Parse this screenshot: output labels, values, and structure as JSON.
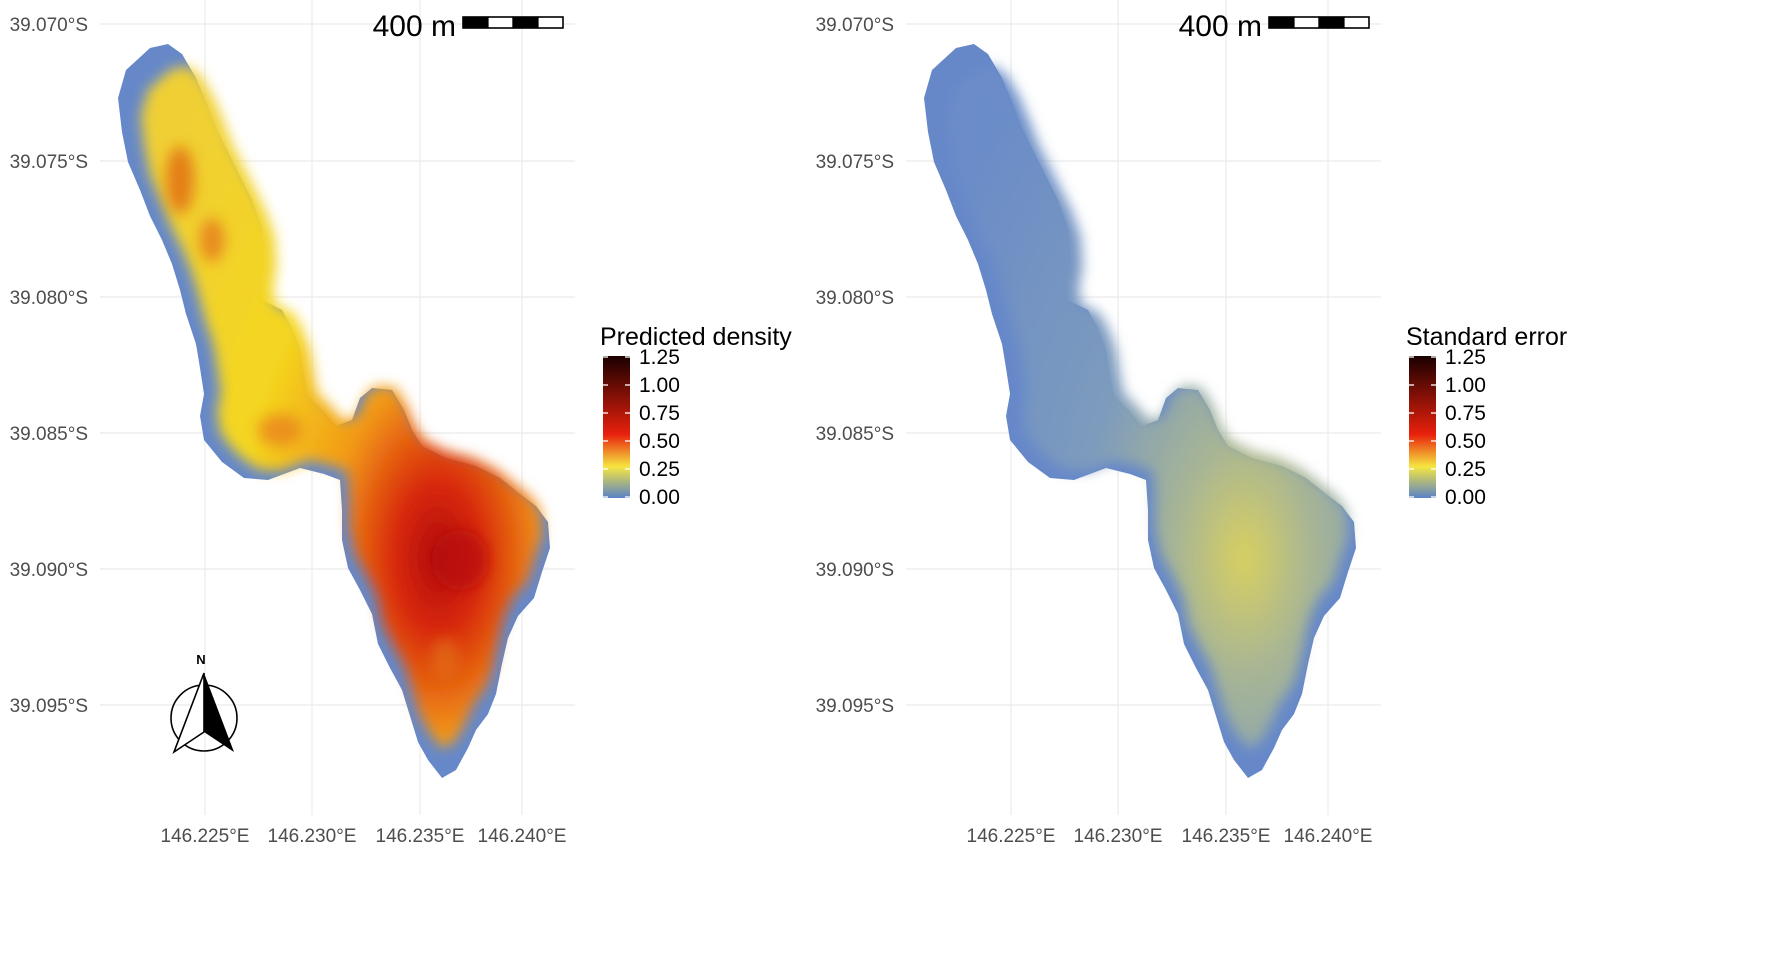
{
  "panels": [
    {
      "id": "density",
      "legend_title": "Predicted density",
      "legend_ticks": [
        "1.25",
        "1.00",
        "0.75",
        "0.50",
        "0.25",
        "0.00"
      ],
      "legend_range": [
        0,
        1.25
      ],
      "scale_bar_label": "400 m",
      "show_north_arrow": true,
      "north_label": "N",
      "fill_mode": "density"
    },
    {
      "id": "standard-error",
      "legend_title": "Standard error",
      "legend_ticks": [
        "1.25",
        "1.00",
        "0.75",
        "0.50",
        "0.25",
        "0.00"
      ],
      "legend_range": [
        0,
        1.25
      ],
      "scale_bar_label": "400 m",
      "show_north_arrow": false,
      "north_label": "",
      "fill_mode": "se"
    }
  ],
  "y_axis_labels": [
    "39.070°S",
    "39.075°S",
    "39.080°S",
    "39.085°S",
    "39.090°S",
    "39.095°S"
  ],
  "x_axis_labels": [
    "146.225°E",
    "146.230°E",
    "146.235°E",
    "146.240°E"
  ],
  "colors": {
    "background": "#ffffff",
    "grid": "#ebebeb",
    "scale_low": "#5b82c8",
    "scale_mid_low": "#f5e640",
    "scale_mid": "#e8200c",
    "scale_high": "#1a0000"
  }
}
